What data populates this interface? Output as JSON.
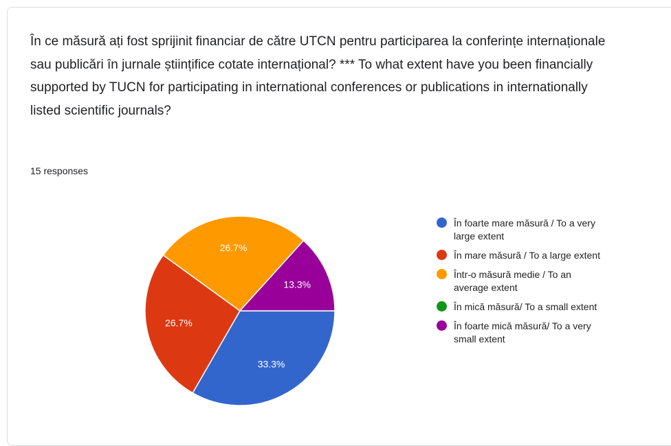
{
  "header": {
    "title": "În ce măsură ați fost sprijinit financiar de către UTCN pentru participarea la conferințe internaționale sau publicări în jurnale științifice cotate internațional? *** To what extent have you been financially supported by TUCN for participating in international conferences or publications in internationally listed scientific journals?",
    "responses": "15 responses"
  },
  "chart_data": {
    "type": "pie",
    "categories": [
      "În foarte mare măsură / To a very large extent",
      "În mare măsură / To a large extent",
      "Într-o măsură medie / To an average extent",
      "În mică măsură/ To a small extent",
      "În foarte mică măsură/ To a very small extent"
    ],
    "values": [
      33.3,
      26.7,
      26.7,
      0,
      13.3
    ],
    "value_labels": [
      "33.3%",
      "26.7%",
      "26.7%",
      null,
      "13.3%"
    ],
    "colors": [
      "#3366cc",
      "#dc3912",
      "#ff9900",
      "#109618",
      "#990099"
    ]
  }
}
